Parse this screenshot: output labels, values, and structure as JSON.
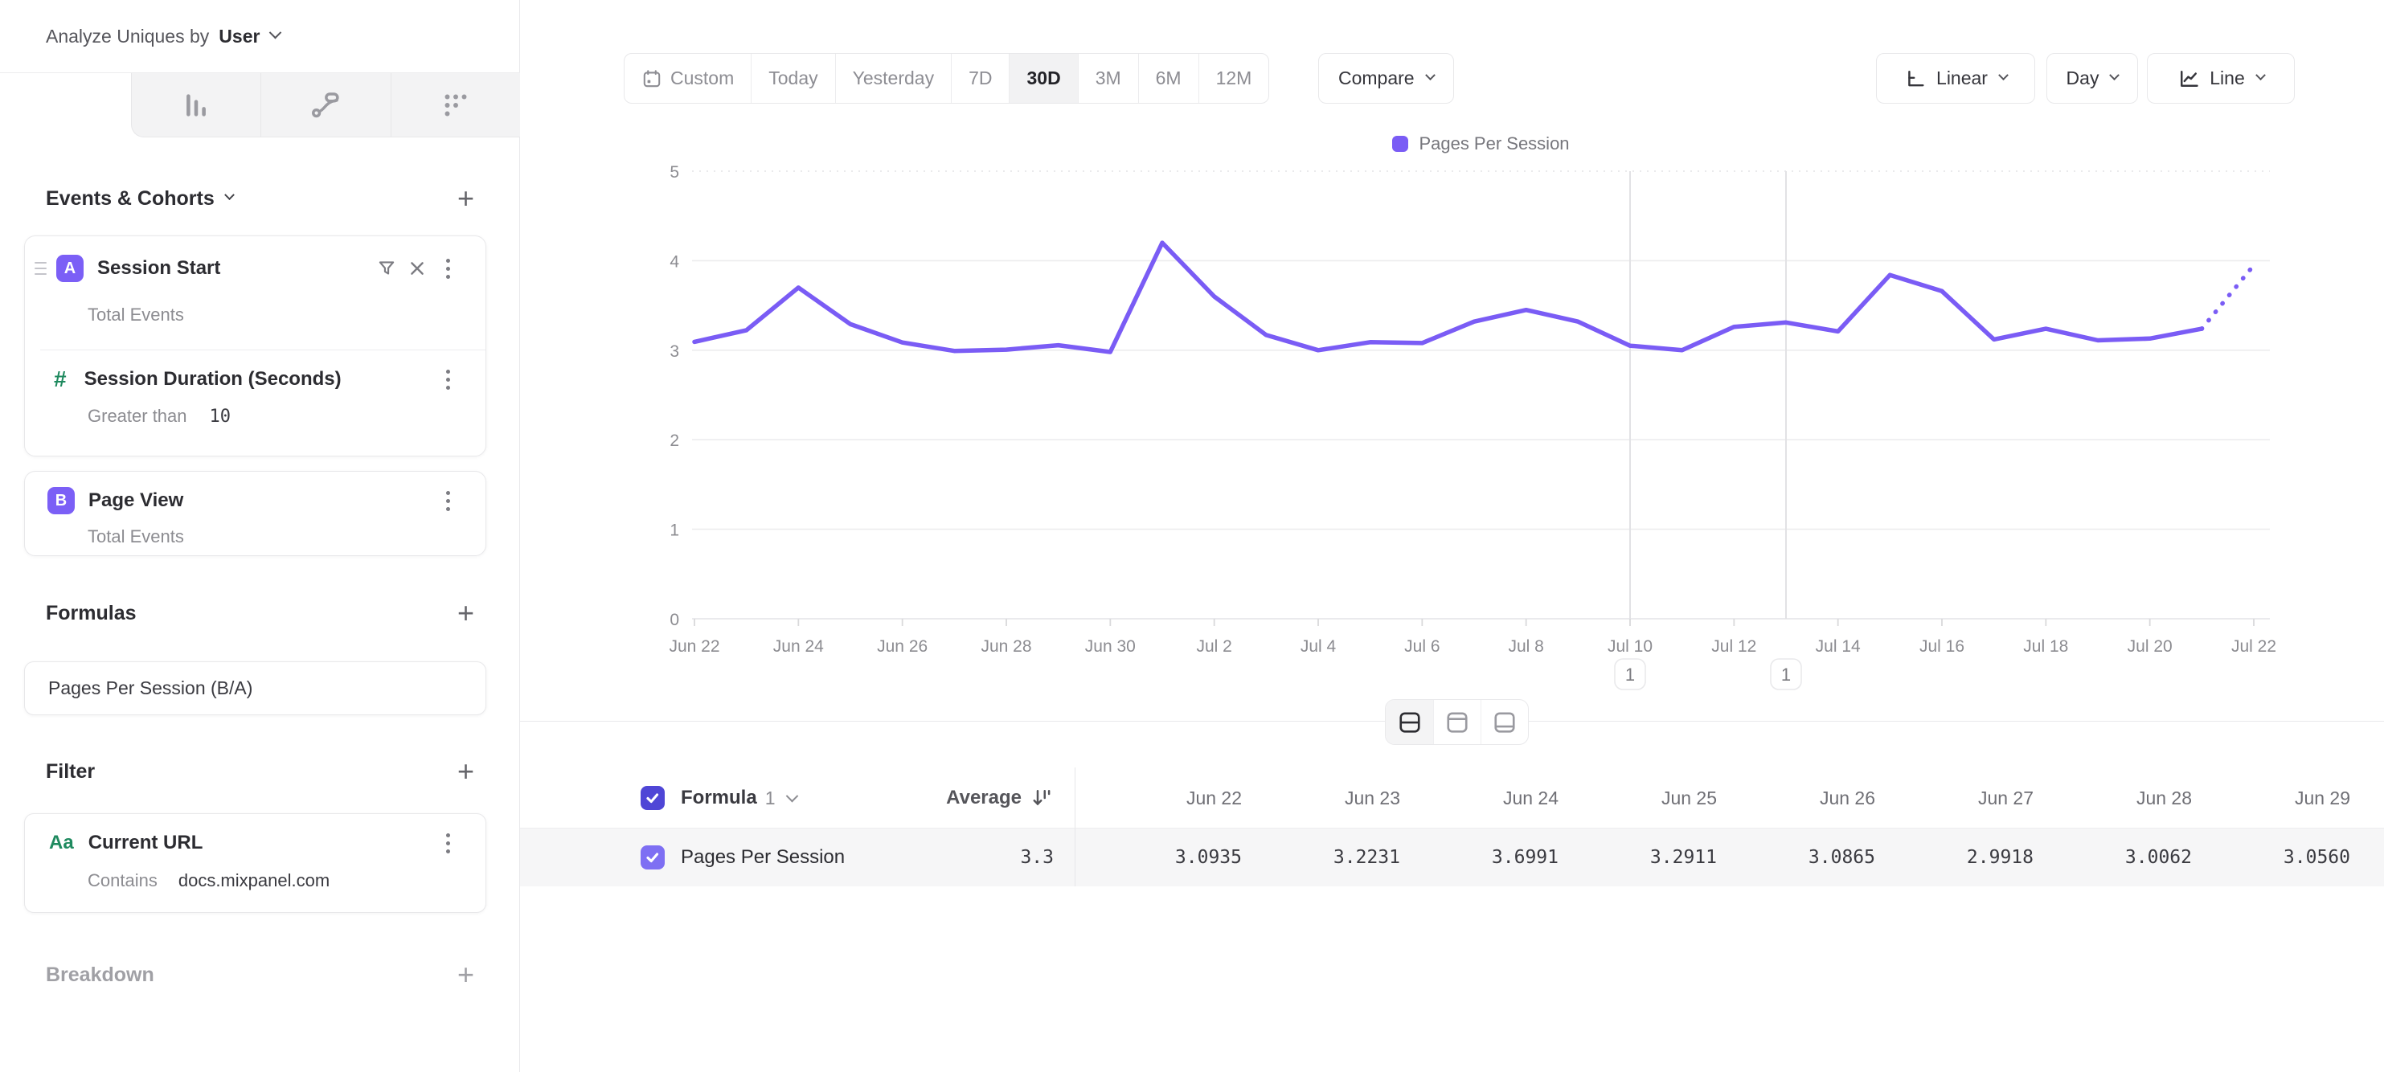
{
  "ui": {
    "plus": "+"
  },
  "header": {
    "analyze_prefix": "Analyze Uniques by",
    "analyze_value": "User"
  },
  "sidebar": {
    "tabs": [
      {
        "name": "insights",
        "selected": true
      },
      {
        "name": "bars",
        "selected": false
      },
      {
        "name": "flows",
        "selected": false
      },
      {
        "name": "retention",
        "selected": false
      }
    ],
    "events": {
      "title": "Events & Cohorts",
      "cards": [
        {
          "badge": "A",
          "title": "Session Start",
          "subtitle": "Total Events",
          "sub": {
            "icon": "#",
            "title": "Session Duration (Seconds)",
            "operator": "Greater than",
            "value": "10"
          }
        },
        {
          "badge": "B",
          "title": "Page View",
          "subtitle": "Total Events"
        }
      ]
    },
    "formulas": {
      "title": "Formulas",
      "formula_name": "Pages Per Session (B/A)"
    },
    "filter": {
      "title": "Filter",
      "icon_label": "Aa",
      "property": "Current URL",
      "operator": "Contains",
      "value": "docs.mixpanel.com"
    },
    "breakdown": {
      "title": "Breakdown"
    }
  },
  "toolbar": {
    "ranges": [
      "Custom",
      "Today",
      "Yesterday",
      "7D",
      "30D",
      "3M",
      "6M",
      "12M"
    ],
    "selected_range": "30D",
    "compare_label": "Compare",
    "scale_label": "Linear",
    "interval_label": "Day",
    "chart_type_label": "Line"
  },
  "chart_data": {
    "type": "line",
    "legend": {
      "label": "Pages Per Session",
      "position": "top-center"
    },
    "x_labels": [
      "Jun 22",
      "Jun 23",
      "Jun 24",
      "Jun 25",
      "Jun 26",
      "Jun 27",
      "Jun 28",
      "Jun 29",
      "Jun 30",
      "Jul 1",
      "Jul 2",
      "Jul 3",
      "Jul 4",
      "Jul 5",
      "Jul 6",
      "Jul 7",
      "Jul 8",
      "Jul 9",
      "Jul 10",
      "Jul 11",
      "Jul 12",
      "Jul 13",
      "Jul 14",
      "Jul 15",
      "Jul 16",
      "Jul 17",
      "Jul 18",
      "Jul 19",
      "Jul 20",
      "Jul 21",
      "Jul 22"
    ],
    "x_tick_step": 2,
    "ylim": [
      0,
      5
    ],
    "yticks": [
      0,
      1,
      2,
      3,
      4,
      5
    ],
    "grid": "horizontal",
    "series": [
      {
        "name": "Pages Per Session",
        "color": "#7a5cf5",
        "values": [
          3.0935,
          3.2231,
          3.6991,
          3.2911,
          3.0865,
          2.9918,
          3.0062,
          3.056,
          2.98,
          4.2,
          3.6,
          3.17,
          3.0,
          3.09,
          3.08,
          3.32,
          3.45,
          3.32,
          3.05,
          3.0,
          3.26,
          3.31,
          3.21,
          3.84,
          3.66,
          3.12,
          3.24,
          3.11,
          3.13,
          3.24,
          3.95
        ]
      }
    ],
    "dashed_from_index": 29,
    "annotations": [
      {
        "x_index": 18,
        "label": "1"
      },
      {
        "x_index": 21,
        "label": "1"
      }
    ]
  },
  "table": {
    "series_label": "Formula",
    "series_number": "1",
    "average_label": "Average",
    "average_value": "3.3",
    "row_label": "Pages Per Session",
    "columns": [
      "Jun 22",
      "Jun 23",
      "Jun 24",
      "Jun 25",
      "Jun 26",
      "Jun 27",
      "Jun 28",
      "Jun 29"
    ],
    "values": [
      "3.0935",
      "3.2231",
      "3.6991",
      "3.2911",
      "3.0865",
      "2.9918",
      "3.0062",
      "3.0560"
    ]
  },
  "colors": {
    "accent": "#7a5cf5",
    "badge_purple": "#7b5ff6",
    "checkbox_header": "#4f46d6",
    "checkbox_row": "#7e6ff3",
    "green": "#1f8a5f",
    "grid": "#ececee",
    "row_bg": "#f6f6f7"
  }
}
